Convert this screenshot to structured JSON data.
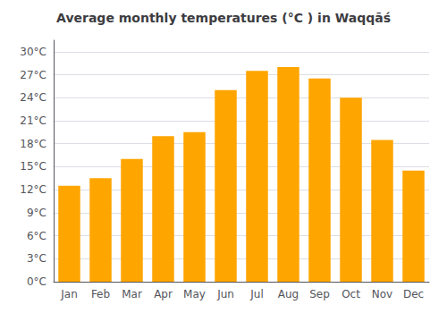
{
  "chart_data": {
    "type": "bar",
    "title": "Average monthly temperatures (°C ) in Waqqāś",
    "categories": [
      "Jan",
      "Feb",
      "Mar",
      "Apr",
      "May",
      "Jun",
      "Jul",
      "Aug",
      "Sep",
      "Oct",
      "Nov",
      "Dec"
    ],
    "values": [
      12.5,
      13.5,
      16.0,
      19.0,
      19.5,
      25.0,
      27.5,
      28.0,
      26.5,
      24.0,
      18.5,
      14.5
    ],
    "color": "#FFA500",
    "ylim": [
      0,
      31.5
    ],
    "yticks": [
      {
        "value": 0,
        "label": "0°C"
      },
      {
        "value": 3,
        "label": "3°C"
      },
      {
        "value": 6,
        "label": "6°C"
      },
      {
        "value": 9,
        "label": "9°C"
      },
      {
        "value": 12,
        "label": "12°C"
      },
      {
        "value": 15,
        "label": "15°C"
      },
      {
        "value": 18,
        "label": "18°C"
      },
      {
        "value": 21,
        "label": "21°C"
      },
      {
        "value": 24,
        "label": "24°C"
      },
      {
        "value": 27,
        "label": "27°C"
      },
      {
        "value": 30,
        "label": "30°C"
      }
    ],
    "grid": true
  }
}
